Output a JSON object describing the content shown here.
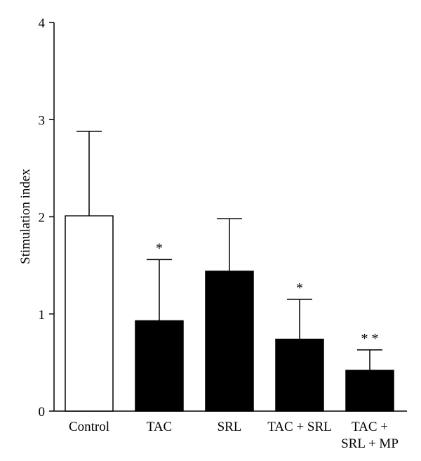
{
  "chart_data": {
    "type": "bar",
    "categories": [
      [
        "Control"
      ],
      [
        "TAC"
      ],
      [
        "SRL"
      ],
      [
        "TAC + SRL"
      ],
      [
        "TAC +",
        "SRL + MP"
      ]
    ],
    "values": [
      2.01,
      0.93,
      1.44,
      0.74,
      0.42
    ],
    "errors": [
      0.87,
      0.63,
      0.54,
      0.41,
      0.21
    ],
    "significance": [
      "",
      "*",
      "",
      "*",
      "**"
    ],
    "bar_fills": [
      "#ffffff",
      "#000000",
      "#000000",
      "#000000",
      "#000000"
    ],
    "ylabel": "Stimulation index",
    "xlabel": "",
    "ylim": [
      0,
      4
    ],
    "yticks": [
      "0",
      "1",
      "2",
      "3",
      "4"
    ],
    "grid": false,
    "legend": "none"
  }
}
